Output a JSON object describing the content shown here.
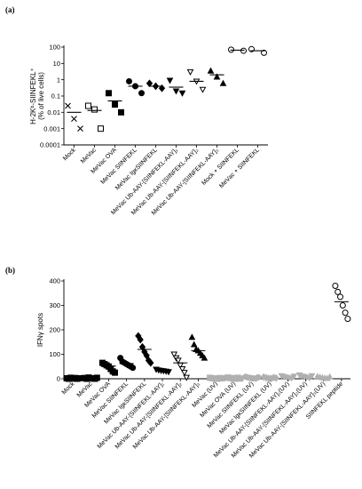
{
  "chart_data": [
    {
      "panel": "(a)",
      "type": "scatter",
      "ylabel": "H-2Kᵇ-SIINFEKL⁺",
      "ylabel2": "(% of live cells)",
      "yscale": "log",
      "ylim": [
        0.0001,
        100
      ],
      "yticks": [
        "0.0001",
        "0.001",
        "0.01",
        "0.1",
        "1",
        "10",
        "100"
      ],
      "categories": [
        "Mock",
        "MeVac",
        "MeVac OVA",
        "MeVac SIINFEKL",
        "MeVac IgκSIINFEKL",
        "MeVac Ub-AAY-[SIINFEKL-AAY]₁",
        "MeVac Ub-AAY-[SIINFEKL-AAY]₂",
        "MeVac Ub-AAY-[SIINFEKL-AAY]₃",
        "Mock + SIINFEKL",
        "MeVac + SIINFEKL"
      ],
      "markers": [
        "x",
        "square-open",
        "square",
        "circle",
        "diamond",
        "triangle-down",
        "triangle-down-open",
        "triangle",
        "circle-open",
        "circle-open"
      ],
      "series": [
        {
          "values": [
            0.025,
            0.004,
            0.001
          ],
          "mean": 0.01
        },
        {
          "values": [
            0.025,
            0.015,
            0.001
          ],
          "mean": 0.013
        },
        {
          "values": [
            0.15,
            0.03,
            0.01
          ],
          "mean": 0.05
        },
        {
          "values": [
            0.8,
            0.4,
            0.15
          ],
          "mean": 0.4
        },
        {
          "values": [
            0.6,
            0.4,
            0.3
          ],
          "mean": 0.4
        },
        {
          "values": [
            0.9,
            0.2,
            0.15
          ],
          "mean": 0.35
        },
        {
          "values": [
            3,
            0.8,
            0.25
          ],
          "mean": 0.8
        },
        {
          "values": [
            3.5,
            1.5,
            0.6
          ],
          "mean": 2
        },
        {
          "values": [
            70,
            60
          ],
          "mean": 65
        },
        {
          "values": [
            75,
            45
          ],
          "mean": 60
        }
      ]
    },
    {
      "panel": "(b)",
      "type": "scatter",
      "ylabel": "IFNγ spots",
      "ylim": [
        0,
        400
      ],
      "yticks": [
        "0",
        "100",
        "200",
        "300",
        "400"
      ],
      "categories": [
        "Mock",
        "MeVac",
        "MeVac OVA",
        "MeVac SIINFEKL",
        "MeVac IgκSIINFEKL",
        "MeVac Ub-AAY-[SIINFEKL-AAY]₁",
        "MeVac Ub-AAY-[SIINFEKL-AAY]₂",
        "MeVac Ub-AAY-[SIINFEKL-AAY]₃",
        "MeVac (UV)",
        "MeVac OVA (UV)",
        "MeVac SIINFEKL (UV)",
        "MeVac IgκSIINFEKL (UV)",
        "MeVac Ub-AAY-[SIINFEKL-AAY]₁(UV)",
        "MeVac Ub-AAY-[SIINFEKL-AAY]₂(UV)",
        "MeVac Ub-AAY-[SIINFEKL-AAY]₃(UV)",
        "SIINFEKL peptide"
      ],
      "markers": [
        "square",
        "square",
        "square",
        "circle",
        "diamond",
        "triangle-down",
        "triangle-down-open",
        "triangle",
        "square-gray",
        "square-gray",
        "circle-gray",
        "diamond-gray",
        "triangle-down-gray",
        "triangle-down-gray",
        "triangle-gray",
        "circle-open"
      ],
      "series": [
        {
          "values": [
            2,
            0,
            4,
            1,
            3,
            0,
            2
          ],
          "mean": 2
        },
        {
          "values": [
            3,
            0,
            5,
            1,
            2,
            0,
            4
          ],
          "mean": 2
        },
        {
          "values": [
            65,
            60,
            55,
            50,
            40,
            30,
            25
          ],
          "mean": 52
        },
        {
          "values": [
            85,
            70,
            65,
            60,
            55,
            50,
            45
          ],
          "mean": 62
        },
        {
          "values": [
            175,
            160,
            130,
            110,
            95,
            75,
            65
          ],
          "mean": 120
        },
        {
          "values": [
            38,
            35,
            33,
            32,
            30,
            28
          ],
          "mean": 33
        },
        {
          "values": [
            100,
            85,
            75,
            55,
            40,
            25,
            5
          ],
          "mean": 65
        },
        {
          "values": [
            170,
            140,
            120,
            115,
            105,
            95,
            85
          ],
          "mean": 115
        },
        {
          "values": [
            4,
            2,
            1,
            0,
            3,
            2
          ],
          "mean": 2
        },
        {
          "values": [
            5,
            3,
            2,
            0,
            4,
            1
          ],
          "mean": 2
        },
        {
          "values": [
            8,
            5,
            3,
            2,
            1,
            6
          ],
          "mean": 4
        },
        {
          "values": [
            7,
            4,
            2,
            1,
            5,
            3
          ],
          "mean": 3
        },
        {
          "values": [
            12,
            8,
            6,
            3,
            2,
            10
          ],
          "mean": 6
        },
        {
          "values": [
            15,
            10,
            8,
            5,
            3,
            12
          ],
          "mean": 8
        },
        {
          "values": [
            10,
            7,
            5,
            3,
            2,
            8
          ],
          "mean": 5
        },
        {
          "values": [
            380,
            355,
            335,
            300,
            270,
            245
          ],
          "mean": 315
        }
      ]
    }
  ]
}
